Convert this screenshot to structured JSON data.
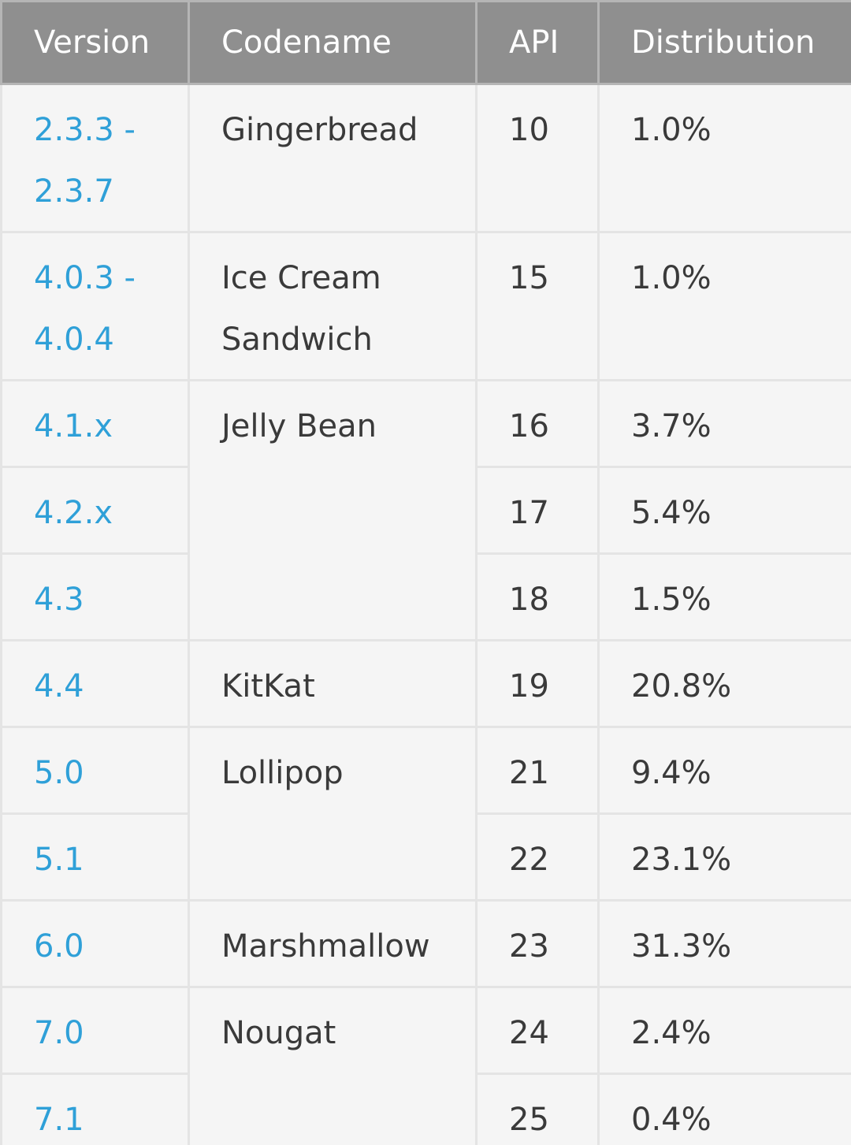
{
  "table": {
    "header": [
      "Version",
      "Codename",
      "API",
      "Distribution"
    ],
    "groups": [
      {
        "codename": "Gingerbread",
        "versions": [
          {
            "version": "2.3.3 - 2.3.7",
            "api": "10",
            "distribution": "1.0%"
          }
        ]
      },
      {
        "codename": "Ice Cream Sandwich",
        "versions": [
          {
            "version": "4.0.3 - 4.0.4",
            "api": "15",
            "distribution": "1.0%"
          }
        ]
      },
      {
        "codename": "Jelly Bean",
        "versions": [
          {
            "version": "4.1.x",
            "api": "16",
            "distribution": "3.7%"
          },
          {
            "version": "4.2.x",
            "api": "17",
            "distribution": "5.4%"
          },
          {
            "version": "4.3",
            "api": "18",
            "distribution": "1.5%"
          }
        ]
      },
      {
        "codename": "KitKat",
        "versions": [
          {
            "version": "4.4",
            "api": "19",
            "distribution": "20.8%"
          }
        ]
      },
      {
        "codename": "Lollipop",
        "versions": [
          {
            "version": "5.0",
            "api": "21",
            "distribution": "9.4%"
          },
          {
            "version": "5.1",
            "api": "22",
            "distribution": "23.1%"
          }
        ]
      },
      {
        "codename": "Marshmallow",
        "versions": [
          {
            "version": "6.0",
            "api": "23",
            "distribution": "31.3%"
          }
        ]
      },
      {
        "codename": "Nougat",
        "versions": [
          {
            "version": "7.0",
            "api": "24",
            "distribution": "2.4%"
          },
          {
            "version": "7.1",
            "api": "25",
            "distribution": "0.4%"
          }
        ]
      }
    ]
  }
}
